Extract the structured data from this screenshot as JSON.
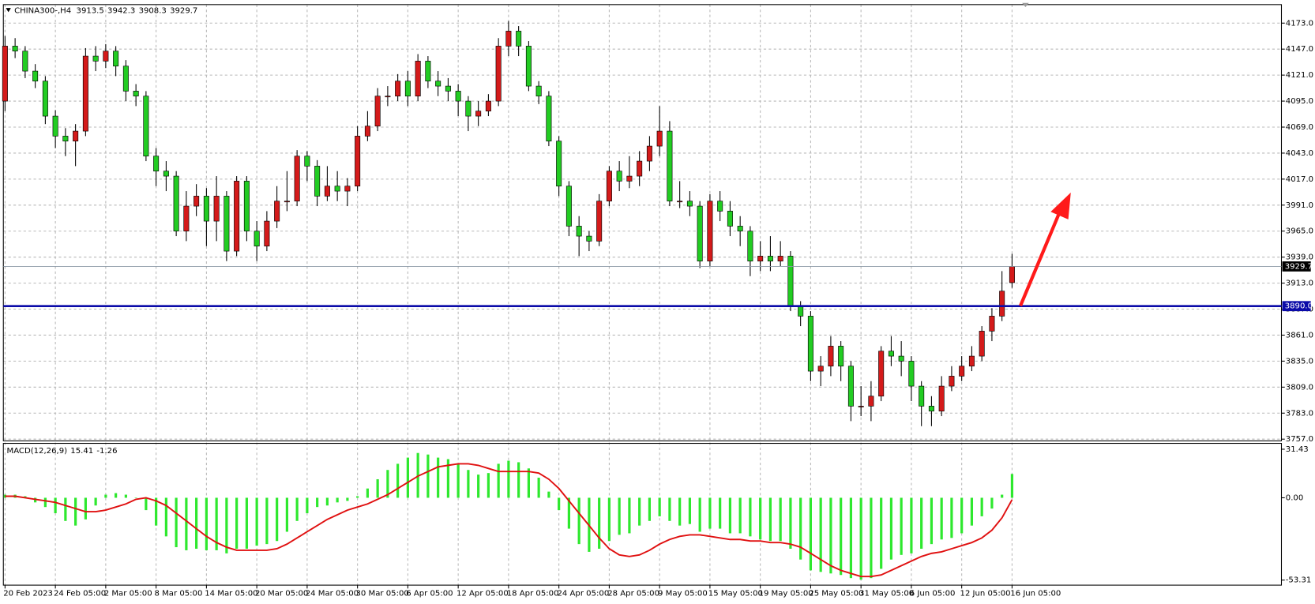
{
  "chart_data": [
    {
      "type": "candlestick",
      "title": "CHINA300-,H4",
      "categories": [
        "20 Feb 2023",
        null,
        null,
        null,
        null,
        "24 Feb 05:00",
        null,
        null,
        null,
        null,
        "2 Mar 05:00",
        null,
        null,
        null,
        null,
        "8 Mar 05:00",
        null,
        null,
        null,
        null,
        "14 Mar 05:00",
        null,
        null,
        null,
        null,
        "20 Mar 05:00",
        null,
        null,
        null,
        null,
        "24 Mar 05:00",
        null,
        null,
        null,
        null,
        "30 Mar 05:00",
        null,
        null,
        null,
        null,
        "6 Apr 05:00",
        null,
        null,
        null,
        null,
        "12 Apr 05:00",
        null,
        null,
        null,
        null,
        "18 Apr 05:00",
        null,
        null,
        null,
        null,
        "24 Apr 05:00",
        null,
        null,
        null,
        null,
        "28 Apr 05:00",
        null,
        null,
        null,
        null,
        "9 May 05:00",
        null,
        null,
        null,
        null,
        "15 May 05:00",
        null,
        null,
        null,
        null,
        "19 May 05:00",
        null,
        null,
        null,
        null,
        "25 May 05:00",
        null,
        null,
        null,
        null,
        "31 May 05:00",
        null,
        null,
        null,
        null,
        "6 Jun 05:00",
        null,
        null,
        null,
        null,
        "12 Jun 05:00",
        null,
        null,
        null,
        null,
        "16 Jun 05:00"
      ],
      "open": [
        4095,
        4150,
        4145,
        4125,
        4115,
        4080,
        4060,
        4055,
        4065,
        4140,
        4135,
        4145,
        4130,
        4105,
        4100,
        4040,
        4025,
        4020,
        3965,
        3990,
        4000,
        3975,
        4000,
        3945,
        4015,
        3965,
        3950,
        3975,
        3995,
        3995,
        4040,
        4030,
        4000,
        4010,
        4005,
        4010,
        4060,
        4070,
        4100,
        4100,
        4115,
        4100,
        4135,
        4115,
        4110,
        4105,
        4095,
        4080,
        4085,
        4095,
        4150,
        4165,
        4150,
        4110,
        4100,
        4055,
        4010,
        3970,
        3960,
        3955,
        3995,
        4025,
        4015,
        4020,
        4035,
        4050,
        4065,
        3995,
        3995,
        3990,
        3935,
        3995,
        3985,
        3970,
        3965,
        3935,
        3940,
        3935,
        3940,
        3890,
        3880,
        3825,
        3830,
        3850,
        3830,
        3790,
        3790,
        3800,
        3845,
        3840,
        3835,
        3810,
        3790,
        3785,
        3810,
        3820,
        3830,
        3840,
        3865,
        3880,
        3913.5
      ],
      "high": [
        4160,
        4158,
        4150,
        4132,
        4120,
        4086,
        4068,
        4072,
        4148,
        4150,
        4152,
        4150,
        4136,
        4112,
        4105,
        4048,
        4035,
        4025,
        4005,
        4012,
        4008,
        4020,
        4005,
        4020,
        4020,
        3975,
        3985,
        4010,
        4025,
        4046,
        4045,
        4036,
        4030,
        4025,
        4018,
        4070,
        4085,
        4108,
        4110,
        4122,
        4125,
        4142,
        4140,
        4125,
        4118,
        4112,
        4100,
        4095,
        4102,
        4158,
        4175,
        4170,
        4155,
        4115,
        4105,
        4060,
        4015,
        3980,
        3965,
        4002,
        4030,
        4035,
        4040,
        4045,
        4060,
        4090,
        4075,
        4015,
        4005,
        3995,
        4002,
        4005,
        3995,
        3980,
        3970,
        3955,
        3960,
        3955,
        3945,
        3895,
        3885,
        3840,
        3860,
        3855,
        3835,
        3810,
        3815,
        3850,
        3860,
        3855,
        3840,
        3815,
        3800,
        3820,
        3830,
        3840,
        3850,
        3870,
        3888,
        3925,
        3942.3
      ],
      "low": [
        4085,
        4138,
        4118,
        4108,
        4072,
        4048,
        4040,
        4030,
        4060,
        4125,
        4128,
        4120,
        4095,
        4090,
        4035,
        4010,
        4005,
        3960,
        3955,
        3980,
        3950,
        3955,
        3935,
        3940,
        3955,
        3935,
        3945,
        3968,
        3985,
        3990,
        4015,
        3990,
        3995,
        3995,
        3990,
        4005,
        4055,
        4065,
        4090,
        4095,
        4090,
        4095,
        4108,
        4100,
        4095,
        4080,
        4065,
        4070,
        4080,
        4090,
        4140,
        4140,
        4105,
        4092,
        4050,
        4000,
        3960,
        3940,
        3945,
        3950,
        3990,
        4005,
        4008,
        4010,
        4025,
        4040,
        3990,
        3988,
        3980,
        3928,
        3930,
        3975,
        3960,
        3950,
        3920,
        3925,
        3925,
        3930,
        3885,
        3870,
        3815,
        3810,
        3820,
        3815,
        3775,
        3780,
        3775,
        3795,
        3830,
        3820,
        3795,
        3770,
        3770,
        3780,
        3805,
        3815,
        3825,
        3835,
        3855,
        3875,
        3908.3
      ],
      "close": [
        4150,
        4145,
        4125,
        4115,
        4080,
        4060,
        4055,
        4065,
        4140,
        4135,
        4145,
        4130,
        4105,
        4100,
        4040,
        4025,
        4020,
        3965,
        3990,
        4000,
        3975,
        4000,
        3945,
        4015,
        3965,
        3950,
        3975,
        3995,
        3995,
        4040,
        4030,
        4000,
        4010,
        4005,
        4010,
        4060,
        4070,
        4100,
        4100,
        4115,
        4100,
        4135,
        4115,
        4110,
        4105,
        4095,
        4080,
        4085,
        4095,
        4150,
        4165,
        4150,
        4110,
        4100,
        4055,
        4010,
        3970,
        3960,
        3955,
        3995,
        4025,
        4015,
        4020,
        4035,
        4050,
        4065,
        3995,
        3995,
        3990,
        3935,
        3995,
        3985,
        3970,
        3965,
        3935,
        3940,
        3935,
        3940,
        3890,
        3880,
        3825,
        3830,
        3850,
        3830,
        3790,
        3790,
        3800,
        3845,
        3840,
        3835,
        3810,
        3790,
        3785,
        3810,
        3820,
        3830,
        3840,
        3865,
        3880,
        3905,
        3929.7
      ],
      "up_color": "#d41a1a",
      "down_color": "#22cc22",
      "ylim": [
        3755.3,
        4191.5
      ],
      "yticks": [
        {
          "value": 4173,
          "label": "4173.0"
        },
        {
          "value": 4147,
          "label": "4147.0"
        },
        {
          "value": 4121,
          "label": "4121.0"
        },
        {
          "value": 4095,
          "label": "4095.0"
        },
        {
          "value": 4069,
          "label": "4069.0"
        },
        {
          "value": 4043,
          "label": "4043.0"
        },
        {
          "value": 4017,
          "label": "4017.0"
        },
        {
          "value": 3991,
          "label": "3991.0"
        },
        {
          "value": 3965,
          "label": "3965.0"
        },
        {
          "value": 3939,
          "label": "3939.0"
        },
        {
          "value": 3913,
          "label": "3913.0"
        },
        {
          "value": 3887,
          "label": "3887.0"
        },
        {
          "value": 3861,
          "label": "3861.0"
        },
        {
          "value": 3835,
          "label": "3835.0"
        },
        {
          "value": 3809,
          "label": "3809.0"
        },
        {
          "value": 3783,
          "label": "3783.0"
        },
        {
          "value": 3757,
          "label": "3757.0"
        }
      ],
      "grid": true,
      "levels": [
        {
          "value": 3890,
          "label": "3890.0",
          "color": "#0a0aa8"
        }
      ],
      "last_price": {
        "value": 3929.7,
        "label": "3929.7"
      }
    },
    {
      "type": "macd",
      "title": "MACD(12,26,9)",
      "series": [
        {
          "color": "#2ee82e",
          "values": [
            2,
            2,
            1,
            -3,
            -6,
            -10,
            -15,
            -18,
            -14,
            -5,
            2,
            3,
            2,
            0,
            -8,
            -18,
            -25,
            -32,
            -34,
            -33,
            -34,
            -34,
            -36,
            -33,
            -33,
            -31,
            -30,
            -28,
            -22,
            -15,
            -10,
            -6,
            -5,
            -3,
            -2,
            1,
            6,
            12,
            18,
            22,
            26,
            29,
            28,
            26,
            25,
            22,
            18,
            15,
            16,
            22,
            24,
            23,
            19,
            13,
            4,
            -8,
            -20,
            -30,
            -35,
            -33,
            -28,
            -24,
            -23,
            -18,
            -15,
            -12,
            -15,
            -18,
            -17,
            -22,
            -20,
            -20,
            -23,
            -23,
            -25,
            -27,
            -28,
            -28,
            -33,
            -40,
            -47,
            -48,
            -49,
            -50,
            -52,
            -53,
            -52,
            -46,
            -40,
            -37,
            -36,
            -33,
            -30,
            -27,
            -26,
            -23,
            -18,
            -12,
            -7,
            2,
            15.41
          ]
        },
        {
          "color": "#e01010",
          "values": [
            1,
            1,
            0,
            -1,
            -2,
            -3,
            -5,
            -7,
            -9,
            -9,
            -8,
            -6,
            -4,
            -1,
            0,
            -2,
            -5,
            -10,
            -15,
            -20,
            -25,
            -29,
            -32,
            -34,
            -34,
            -34,
            -34,
            -33,
            -30,
            -26,
            -22,
            -18,
            -14,
            -11,
            -8,
            -6,
            -4,
            -1,
            2,
            6,
            10,
            14,
            17,
            20,
            21,
            22,
            22,
            21,
            19,
            17,
            17,
            17,
            17,
            16,
            12,
            6,
            -2,
            -10,
            -18,
            -26,
            -33,
            -37,
            -38,
            -37,
            -34,
            -30,
            -27,
            -25,
            -24,
            -24,
            -25,
            -26,
            -27,
            -27,
            -28,
            -28,
            -29,
            -29,
            -30,
            -32,
            -36,
            -40,
            -44,
            -47,
            -49,
            -51,
            -51,
            -50,
            -47,
            -44,
            -41,
            -38,
            -36,
            -35,
            -33,
            -31,
            -29,
            -26,
            -21,
            -13,
            -1.26
          ]
        }
      ],
      "ylim": [
        -56.57,
        35.23
      ],
      "yticks": [
        31.43,
        {
          "value": 0,
          "label": "0.00"
        },
        -53.31
      ]
    }
  ]
}
